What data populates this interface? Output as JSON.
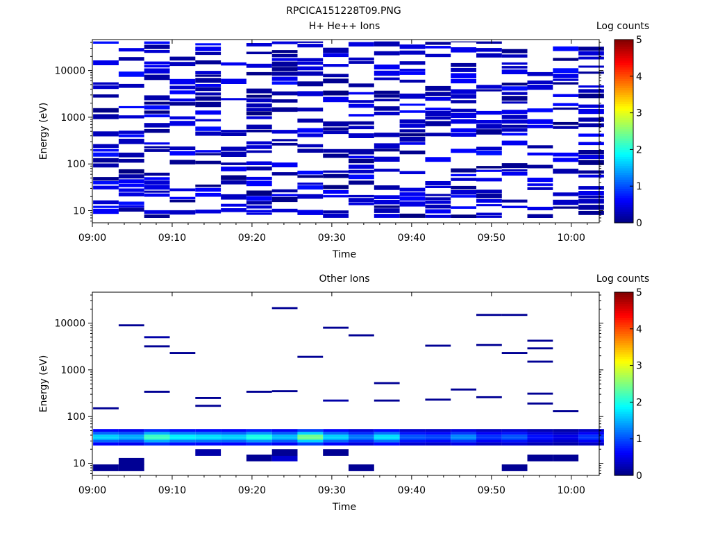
{
  "figure_title": "RPCICA151228T09.PNG",
  "chart_data": [
    {
      "type": "heatmap",
      "title": "H+ He++ Ions",
      "xlabel": "Time",
      "ylabel": "Energy (eV)",
      "x_ticks": [
        "09:00",
        "09:10",
        "09:20",
        "09:30",
        "09:40",
        "09:50",
        "10:00"
      ],
      "x_range_minutes": [
        0,
        63.5
      ],
      "y_ticks": [
        "10",
        "100",
        "1000",
        "10000"
      ],
      "y_scale": "log",
      "y_range": [
        5.5,
        46000
      ],
      "colorbar": {
        "label": "Log counts",
        "range": [
          0,
          5
        ],
        "ticks": [
          "0",
          "1",
          "2",
          "3",
          "4",
          "5"
        ]
      },
      "time_bins_minutes": [
        0.1,
        3.3,
        6.5,
        9.7,
        12.9,
        16.1,
        19.3,
        22.5,
        25.7,
        28.9,
        32.1,
        35.3,
        38.5,
        41.7,
        44.9,
        48.1,
        51.3,
        54.5,
        57.7,
        60.9
      ],
      "density": 0.5,
      "log_counts_range": [
        0,
        0.7
      ],
      "seed": 7,
      "grid": false
    },
    {
      "type": "heatmap",
      "title": "Other Ions",
      "xlabel": "Time",
      "ylabel": "Energy (eV)",
      "x_ticks": [
        "09:00",
        "09:10",
        "09:20",
        "09:30",
        "09:40",
        "09:50",
        "10:00"
      ],
      "x_range_minutes": [
        0,
        63.5
      ],
      "y_ticks": [
        "10",
        "100",
        "1000",
        "10000"
      ],
      "y_scale": "log",
      "y_range": [
        5.5,
        46000
      ],
      "colorbar": {
        "label": "Log counts",
        "range": [
          0,
          5
        ],
        "ticks": [
          "0",
          "1",
          "2",
          "3",
          "4",
          "5"
        ]
      },
      "time_bins_minutes": [
        0.1,
        3.3,
        6.5,
        9.7,
        12.9,
        16.1,
        19.3,
        22.5,
        25.7,
        28.9,
        32.1,
        35.3,
        38.5,
        41.7,
        44.9,
        48.1,
        51.3,
        54.5,
        57.7,
        60.9
      ],
      "band_energies_eV": [
        24,
        28,
        32,
        36,
        41,
        47,
        54
      ],
      "band_peak_log_counts": [
        1.9,
        1.7,
        2.5,
        2.1,
        2.0,
        1.9,
        2.3,
        1.8,
        2.8,
        1.9,
        1.4,
        2.0,
        1.2,
        1.1,
        1.5,
        1.0,
        1.2,
        0.8,
        0.6,
        1.0
      ],
      "sparse_points": [
        {
          "t": 0.1,
          "e": 150,
          "v": 0.1
        },
        {
          "t": 3.3,
          "e": 9000,
          "v": 0.1
        },
        {
          "t": 6.5,
          "e": 5000,
          "v": 0.2
        },
        {
          "t": 6.5,
          "e": 3200,
          "v": 0.1
        },
        {
          "t": 6.5,
          "e": 340,
          "v": 0.1
        },
        {
          "t": 9.7,
          "e": 2300,
          "v": 0.1
        },
        {
          "t": 12.9,
          "e": 250,
          "v": 0.1
        },
        {
          "t": 12.9,
          "e": 170,
          "v": 0.1
        },
        {
          "t": 19.3,
          "e": 340,
          "v": 0.1
        },
        {
          "t": 22.5,
          "e": 21000,
          "v": 0.1
        },
        {
          "t": 22.5,
          "e": 350,
          "v": 0.1
        },
        {
          "t": 25.7,
          "e": 1900,
          "v": 0.1
        },
        {
          "t": 28.9,
          "e": 8000,
          "v": 0.1
        },
        {
          "t": 28.9,
          "e": 220,
          "v": 0.2
        },
        {
          "t": 32.1,
          "e": 5500,
          "v": 0.1
        },
        {
          "t": 35.3,
          "e": 520,
          "v": 0.1
        },
        {
          "t": 35.3,
          "e": 220,
          "v": 0.1
        },
        {
          "t": 41.7,
          "e": 3300,
          "v": 0.1
        },
        {
          "t": 41.7,
          "e": 230,
          "v": 0.1
        },
        {
          "t": 44.9,
          "e": 380,
          "v": 0.1
        },
        {
          "t": 48.1,
          "e": 15000,
          "v": 0.1
        },
        {
          "t": 48.1,
          "e": 3400,
          "v": 0.1
        },
        {
          "t": 48.1,
          "e": 260,
          "v": 0.1
        },
        {
          "t": 51.3,
          "e": 15000,
          "v": 0.1
        },
        {
          "t": 51.3,
          "e": 2300,
          "v": 0.1
        },
        {
          "t": 54.5,
          "e": 4200,
          "v": 0.1
        },
        {
          "t": 54.5,
          "e": 2900,
          "v": 0.1
        },
        {
          "t": 54.5,
          "e": 1500,
          "v": 0.1
        },
        {
          "t": 54.5,
          "e": 310,
          "v": 0.1
        },
        {
          "t": 54.5,
          "e": 190,
          "v": 0.1
        },
        {
          "t": 57.7,
          "e": 130,
          "v": 0.1
        },
        {
          "t": 0.1,
          "e": 8,
          "v": 0.1
        },
        {
          "t": 3.3,
          "e": 11,
          "v": 0.1
        },
        {
          "t": 3.3,
          "e": 8,
          "v": 0.1
        },
        {
          "t": 19.3,
          "e": 13,
          "v": 0.1
        },
        {
          "t": 22.5,
          "e": 13,
          "v": 0.4
        },
        {
          "t": 22.5,
          "e": 17,
          "v": 0.1
        },
        {
          "t": 28.9,
          "e": 17,
          "v": 0.1
        },
        {
          "t": 32.1,
          "e": 8,
          "v": 0.1
        },
        {
          "t": 51.3,
          "e": 8,
          "v": 0.1
        },
        {
          "t": 54.5,
          "e": 13,
          "v": 0.1
        },
        {
          "t": 57.7,
          "e": 13,
          "v": 0.1
        },
        {
          "t": 12.9,
          "e": 17,
          "v": 0.2
        }
      ],
      "grid": false
    }
  ]
}
